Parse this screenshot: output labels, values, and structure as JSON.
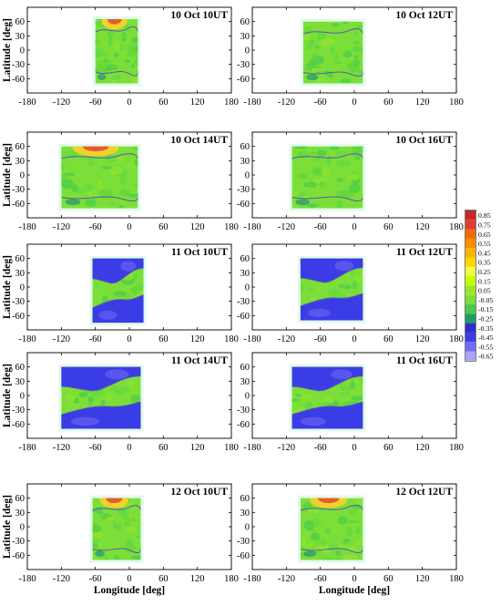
{
  "chart_data": {
    "type": "heatmap",
    "xlim": [
      -180,
      180
    ],
    "ylim": [
      -90,
      90
    ],
    "xlabel": "Longitude [deg]",
    "ylabel": "Latitude [deg]",
    "x_ticks": [
      "-180",
      "-120",
      "-60",
      "0",
      "60",
      "120",
      "180"
    ],
    "y_ticks": [
      "60",
      "30",
      "0",
      "-30",
      "-60"
    ],
    "colorbar": {
      "labels": [
        "0.85",
        "0.75",
        "0.65",
        "0.55",
        "0.45",
        "0.35",
        "0.25",
        "0.15",
        "0.05",
        "-0.05",
        "-0.15",
        "-0.25",
        "-0.35",
        "-0.45",
        "-0.55",
        "-0.65"
      ],
      "colors": [
        "#c62828",
        "#e53935",
        "#ef6c00",
        "#fb8c00",
        "#ffb300",
        "#ffd600",
        "#eeff41",
        "#c6ff00",
        "#9be52a",
        "#7cdf38",
        "#4cc94c",
        "#1f9e60",
        "#2b2fc9",
        "#3a3de6",
        "#6f6cf2",
        "#a9a4f7"
      ]
    },
    "panels": [
      {
        "title": "10 Oct 10UT",
        "lon_range": [
          -60,
          15
        ],
        "lat_range": [
          -70,
          65
        ],
        "mode": "mid-red"
      },
      {
        "title": "10 Oct 12UT",
        "lon_range": [
          -90,
          15
        ],
        "lat_range": [
          -70,
          60
        ],
        "mode": "mid"
      },
      {
        "title": "10 Oct 14UT",
        "lon_range": [
          -120,
          15
        ],
        "lat_range": [
          -70,
          60
        ],
        "mode": "mid-red"
      },
      {
        "title": "10 Oct 16UT",
        "lon_range": [
          -110,
          15
        ],
        "lat_range": [
          -70,
          60
        ],
        "mode": "mid"
      },
      {
        "title": "11 Oct 10UT",
        "lon_range": [
          -65,
          25
        ],
        "lat_range": [
          -75,
          60
        ],
        "mode": "neg"
      },
      {
        "title": "11 Oct 12UT",
        "lon_range": [
          -95,
          15
        ],
        "lat_range": [
          -70,
          60
        ],
        "mode": "neg"
      },
      {
        "title": "11 Oct 14UT",
        "lon_range": [
          -120,
          20
        ],
        "lat_range": [
          -70,
          60
        ],
        "mode": "neg"
      },
      {
        "title": "11 Oct 16UT",
        "lon_range": [
          -110,
          15
        ],
        "lat_range": [
          -70,
          60
        ],
        "mode": "neg"
      },
      {
        "title": "12 Oct 10UT",
        "lon_range": [
          -65,
          20
        ],
        "lat_range": [
          -70,
          60
        ],
        "mode": "mid-red"
      },
      {
        "title": "12 Oct 12UT",
        "lon_range": [
          -95,
          15
        ],
        "lat_range": [
          -70,
          60
        ],
        "mode": "mid-red"
      }
    ]
  }
}
